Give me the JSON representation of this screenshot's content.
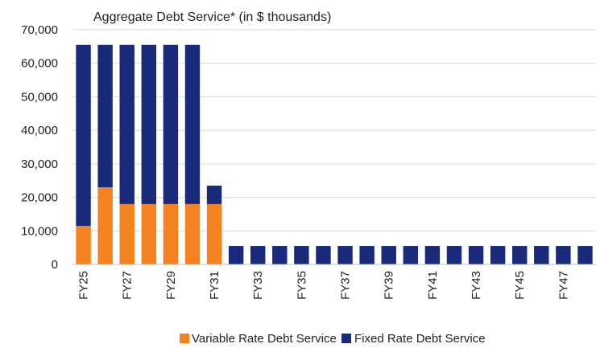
{
  "chart_data": {
    "type": "bar",
    "stacked": true,
    "title": "Aggregate Debt Service* (in $ thousands)",
    "xlabel": "",
    "ylabel": "",
    "ylim": [
      0,
      70000
    ],
    "yticks": [
      "0",
      "10,000",
      "20,000",
      "30,000",
      "40,000",
      "50,000",
      "60,000",
      "70,000"
    ],
    "grid": true,
    "legend_position": "bottom",
    "categories": [
      "FY25",
      "FY26",
      "FY27",
      "FY28",
      "FY29",
      "FY30",
      "FY31",
      "FY32",
      "FY33",
      "FY34",
      "FY35",
      "FY36",
      "FY37",
      "FY38",
      "FY39",
      "FY40",
      "FY41",
      "FY42",
      "FY43",
      "FY44",
      "FY45",
      "FY46",
      "FY47",
      "FY48"
    ],
    "category_labels": [
      "FY25",
      "",
      "FY27",
      "",
      "FY29",
      "",
      "FY31",
      "",
      "FY33",
      "",
      "FY35",
      "",
      "FY37",
      "",
      "FY39",
      "",
      "FY41",
      "",
      "FY43",
      "",
      "FY45",
      "",
      "FY47",
      ""
    ],
    "series": [
      {
        "name": "Variable Rate Debt Service",
        "color": "#f58220",
        "values": [
          11500,
          23000,
          18000,
          18000,
          18000,
          18000,
          18000,
          0,
          0,
          0,
          0,
          0,
          0,
          0,
          0,
          0,
          0,
          0,
          0,
          0,
          0,
          0,
          0,
          0
        ]
      },
      {
        "name": "Fixed Rate Debt Service",
        "color": "#1a2a7a",
        "values": [
          54000,
          42500,
          47500,
          47500,
          47500,
          47500,
          5500,
          5500,
          5500,
          5500,
          5500,
          5500,
          5500,
          5500,
          5500,
          5500,
          5500,
          5500,
          5500,
          5500,
          5500,
          5500,
          5500,
          5500
        ]
      }
    ]
  }
}
